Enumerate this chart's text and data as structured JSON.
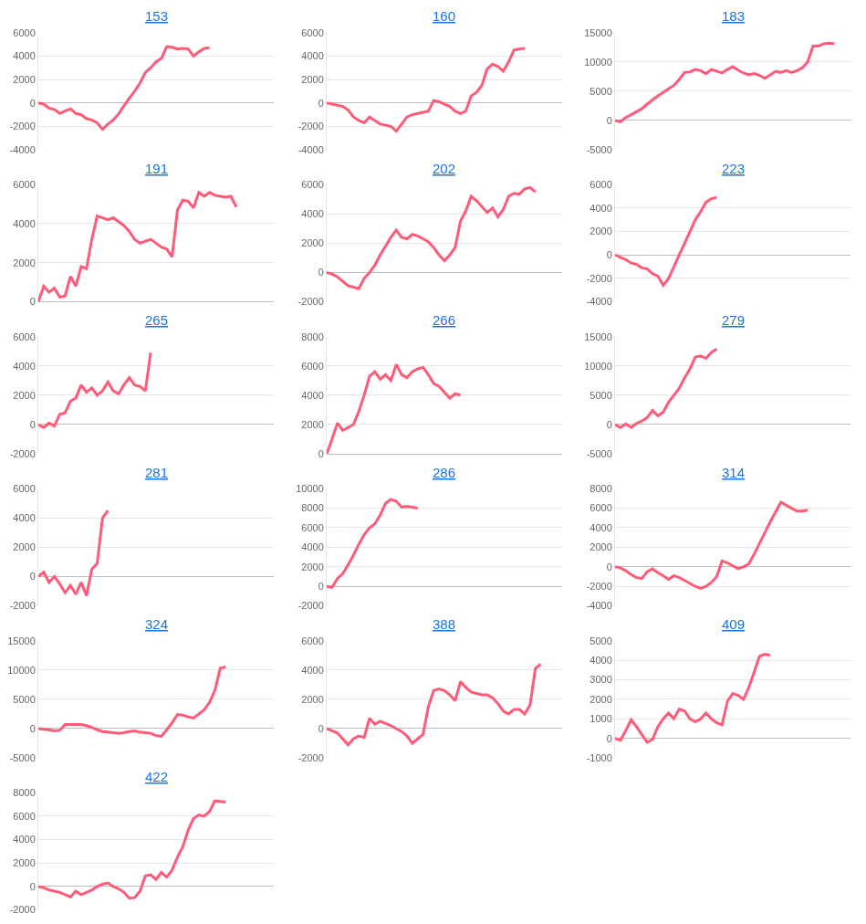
{
  "chart_data": [
    {
      "type": "line",
      "title": "153",
      "grid": "y",
      "color": "#ff5a78",
      "ylim": [
        -4000,
        6000
      ],
      "yticks": [
        -4000,
        -2000,
        0,
        2000,
        4000,
        6000
      ],
      "categories": [
        null,
        null,
        null,
        null,
        null,
        null,
        null,
        null,
        null,
        null,
        null,
        null,
        null,
        null,
        null,
        null,
        null,
        null,
        null,
        null,
        null,
        null,
        null,
        null,
        null,
        null,
        null,
        null,
        null,
        null,
        null,
        null,
        null,
        null,
        null,
        null,
        null,
        null,
        null,
        null,
        null,
        null,
        null,
        null,
        null
      ],
      "values": [
        0,
        -100,
        -450,
        -550,
        -900,
        -700,
        -500,
        -900,
        -1000,
        -1350,
        -1450,
        -1700,
        -2250,
        -1800,
        -1450,
        -950,
        -250,
        400,
        1000,
        1700,
        2600,
        3000,
        3500,
        3800,
        4800,
        4750,
        4600,
        4650,
        4600,
        4000,
        4350,
        4650,
        4700,
        null,
        null,
        null,
        null,
        null,
        null,
        null,
        null,
        null,
        null,
        null,
        null
      ]
    },
    {
      "type": "line",
      "title": "160",
      "grid": "y",
      "color": "#ff5a78",
      "ylim": [
        -4000,
        6000
      ],
      "yticks": [
        -4000,
        -2000,
        0,
        2000,
        4000,
        6000
      ],
      "categories": [
        null,
        null,
        null,
        null,
        null,
        null,
        null,
        null,
        null,
        null,
        null,
        null,
        null,
        null,
        null,
        null,
        null,
        null,
        null,
        null,
        null,
        null,
        null,
        null,
        null,
        null,
        null,
        null,
        null,
        null,
        null,
        null,
        null,
        null,
        null,
        null,
        null,
        null,
        null,
        null,
        null,
        null,
        null,
        null,
        null
      ],
      "values": [
        0,
        -100,
        -200,
        -300,
        -600,
        -1200,
        -1500,
        -1700,
        -1200,
        -1500,
        -1800,
        -1900,
        -2000,
        -2400,
        -1800,
        -1200,
        -1000,
        -900,
        -800,
        -700,
        200,
        100,
        -100,
        -300,
        -700,
        -900,
        -700,
        600,
        900,
        1500,
        2900,
        3300,
        3100,
        2700,
        3500,
        4500,
        4600,
        4650,
        null,
        null,
        null,
        null,
        null,
        null,
        null
      ]
    },
    {
      "type": "line",
      "title": "183",
      "grid": "y",
      "color": "#ff5a78",
      "ylim": [
        -5000,
        15000
      ],
      "yticks": [
        -5000,
        0,
        5000,
        10000,
        15000
      ],
      "categories": [
        null,
        null,
        null,
        null,
        null,
        null,
        null,
        null,
        null,
        null,
        null,
        null,
        null,
        null,
        null,
        null,
        null,
        null,
        null,
        null,
        null,
        null,
        null,
        null,
        null,
        null,
        null,
        null,
        null,
        null,
        null,
        null,
        null,
        null,
        null,
        null,
        null,
        null,
        null,
        null,
        null,
        null,
        null,
        null,
        null
      ],
      "values": [
        0,
        -200,
        500,
        1000,
        1500,
        2000,
        2800,
        3500,
        4200,
        4800,
        5400,
        6000,
        7000,
        8200,
        8300,
        8700,
        8500,
        8000,
        8700,
        8400,
        8100,
        8700,
        9200,
        8600,
        8100,
        7800,
        8000,
        7700,
        7200,
        7800,
        8400,
        8200,
        8500,
        8200,
        8500,
        9000,
        10000,
        12700,
        12700,
        13100,
        13200,
        13100,
        null,
        null,
        null
      ]
    },
    {
      "type": "line",
      "title": "191",
      "grid": "y",
      "color": "#ff5a78",
      "ylim": [
        0,
        6000
      ],
      "yticks": [
        0,
        2000,
        4000,
        6000
      ],
      "categories": [
        null,
        null,
        null,
        null,
        null,
        null,
        null,
        null,
        null,
        null,
        null,
        null,
        null,
        null,
        null,
        null,
        null,
        null,
        null,
        null,
        null,
        null,
        null,
        null,
        null,
        null,
        null,
        null,
        null,
        null,
        null,
        null,
        null,
        null,
        null,
        null,
        null,
        null,
        null,
        null,
        null,
        null,
        null,
        null,
        null
      ],
      "values": [
        0,
        800,
        500,
        700,
        250,
        300,
        1300,
        800,
        1800,
        1700,
        3200,
        4400,
        4300,
        4200,
        4300,
        4100,
        3900,
        3600,
        3200,
        3000,
        3100,
        3200,
        3000,
        2800,
        2700,
        2300,
        4700,
        5200,
        5150,
        4800,
        5600,
        5400,
        5600,
        5450,
        5400,
        5350,
        5400,
        4850,
        null,
        null,
        null,
        null,
        null,
        null,
        null
      ]
    },
    {
      "type": "line",
      "title": "202",
      "grid": "y",
      "color": "#ff5a78",
      "ylim": [
        -2000,
        6000
      ],
      "yticks": [
        -2000,
        0,
        2000,
        4000,
        6000
      ],
      "categories": [
        null,
        null,
        null,
        null,
        null,
        null,
        null,
        null,
        null,
        null,
        null,
        null,
        null,
        null,
        null,
        null,
        null,
        null,
        null,
        null,
        null,
        null,
        null,
        null,
        null,
        null,
        null,
        null,
        null,
        null,
        null,
        null,
        null,
        null,
        null,
        null,
        null,
        null,
        null,
        null,
        null,
        null,
        null,
        null,
        null
      ],
      "values": [
        0,
        -100,
        -300,
        -600,
        -900,
        -1000,
        -1100,
        -400,
        0,
        500,
        1200,
        1800,
        2400,
        2900,
        2400,
        2300,
        2600,
        2500,
        2300,
        2100,
        1700,
        1200,
        800,
        1200,
        1700,
        3500,
        4200,
        5200,
        4900,
        4500,
        4100,
        4400,
        3800,
        4300,
        5200,
        5400,
        5350,
        5700,
        5800,
        5500,
        null,
        null,
        null,
        null,
        null
      ]
    },
    {
      "type": "line",
      "title": "223",
      "grid": "y",
      "color": "#ff5a78",
      "ylim": [
        -4000,
        6000
      ],
      "yticks": [
        -4000,
        -2000,
        0,
        2000,
        4000,
        6000
      ],
      "categories": [
        null,
        null,
        null,
        null,
        null,
        null,
        null,
        null,
        null,
        null,
        null,
        null,
        null,
        null,
        null,
        null,
        null,
        null,
        null,
        null,
        null,
        null,
        null,
        null,
        null,
        null,
        null,
        null,
        null,
        null,
        null,
        null,
        null,
        null,
        null,
        null,
        null,
        null,
        null,
        null,
        null,
        null,
        null,
        null,
        null
      ],
      "values": [
        0,
        -200,
        -400,
        -700,
        -800,
        -1100,
        -1200,
        -1600,
        -1800,
        -2600,
        -2000,
        -1000,
        0,
        1000,
        2000,
        3000,
        3700,
        4500,
        4800,
        4900,
        null,
        null,
        null,
        null,
        null,
        null,
        null,
        null,
        null,
        null,
        null,
        null,
        null,
        null,
        null,
        null,
        null,
        null,
        null,
        null,
        null,
        null,
        null,
        null,
        null
      ]
    },
    {
      "type": "line",
      "title": "265",
      "grid": "y",
      "color": "#ff5a78",
      "ylim": [
        -2000,
        6000
      ],
      "yticks": [
        -2000,
        0,
        2000,
        4000,
        6000
      ],
      "categories": [
        null,
        null,
        null,
        null,
        null,
        null,
        null,
        null,
        null,
        null,
        null,
        null,
        null,
        null,
        null,
        null,
        null,
        null,
        null,
        null,
        null,
        null,
        null,
        null,
        null,
        null,
        null,
        null,
        null,
        null,
        null,
        null,
        null,
        null,
        null,
        null,
        null,
        null,
        null,
        null,
        null,
        null,
        null,
        null,
        null
      ],
      "values": [
        0,
        -200,
        100,
        -100,
        700,
        800,
        1600,
        1800,
        2700,
        2200,
        2500,
        2000,
        2300,
        2900,
        2300,
        2100,
        2700,
        3200,
        2700,
        2600,
        2300,
        4900,
        null,
        null,
        null,
        null,
        null,
        null,
        null,
        null,
        null,
        null,
        null,
        null,
        null,
        null,
        null,
        null,
        null,
        null,
        null,
        null,
        null,
        null,
        null
      ]
    },
    {
      "type": "line",
      "title": "266",
      "grid": "y",
      "color": "#ff5a78",
      "ylim": [
        0,
        8000
      ],
      "yticks": [
        0,
        2000,
        4000,
        6000,
        8000
      ],
      "categories": [
        null,
        null,
        null,
        null,
        null,
        null,
        null,
        null,
        null,
        null,
        null,
        null,
        null,
        null,
        null,
        null,
        null,
        null,
        null,
        null,
        null,
        null,
        null,
        null,
        null,
        null,
        null,
        null,
        null,
        null,
        null,
        null,
        null,
        null,
        null,
        null,
        null,
        null,
        null,
        null,
        null,
        null,
        null,
        null,
        null
      ],
      "values": [
        0,
        1000,
        2100,
        1600,
        1800,
        2000,
        2900,
        4000,
        5300,
        5600,
        5100,
        5400,
        5000,
        6100,
        5400,
        5200,
        5600,
        5800,
        5900,
        5400,
        4800,
        4600,
        4200,
        3800,
        4100,
        4000,
        null,
        null,
        null,
        null,
        null,
        null,
        null,
        null,
        null,
        null,
        null,
        null,
        null,
        null,
        null,
        null,
        null,
        null,
        null
      ]
    },
    {
      "type": "line",
      "title": "279",
      "grid": "y",
      "color": "#ff5a78",
      "ylim": [
        -5000,
        15000
      ],
      "yticks": [
        -5000,
        0,
        5000,
        10000,
        15000
      ],
      "categories": [
        null,
        null,
        null,
        null,
        null,
        null,
        null,
        null,
        null,
        null,
        null,
        null,
        null,
        null,
        null,
        null,
        null,
        null,
        null,
        null,
        null,
        null,
        null,
        null,
        null,
        null,
        null,
        null,
        null,
        null,
        null,
        null,
        null,
        null,
        null,
        null,
        null,
        null,
        null,
        null,
        null,
        null,
        null,
        null,
        null
      ],
      "values": [
        0,
        -500,
        100,
        -500,
        200,
        600,
        1200,
        2400,
        1500,
        2100,
        3800,
        5000,
        6200,
        8000,
        9500,
        11500,
        11700,
        11300,
        12300,
        12900,
        null,
        null,
        null,
        null,
        null,
        null,
        null,
        null,
        null,
        null,
        null,
        null,
        null,
        null,
        null,
        null,
        null,
        null,
        null,
        null,
        null,
        null,
        null,
        null,
        null
      ]
    },
    {
      "type": "line",
      "title": "281",
      "grid": "y",
      "color": "#ff5a78",
      "ylim": [
        -2000,
        6000
      ],
      "yticks": [
        -2000,
        0,
        2000,
        4000,
        6000
      ],
      "categories": [
        null,
        null,
        null,
        null,
        null,
        null,
        null,
        null,
        null,
        null,
        null,
        null,
        null,
        null,
        null,
        null,
        null,
        null,
        null,
        null,
        null,
        null,
        null,
        null,
        null,
        null,
        null,
        null,
        null,
        null,
        null,
        null,
        null,
        null,
        null,
        null,
        null,
        null,
        null,
        null,
        null,
        null,
        null,
        null,
        null
      ],
      "values": [
        0,
        300,
        -400,
        0,
        -500,
        -1100,
        -600,
        -1200,
        -400,
        -1300,
        500,
        900,
        4000,
        4500,
        null,
        null,
        null,
        null,
        null,
        null,
        null,
        null,
        null,
        null,
        null,
        null,
        null,
        null,
        null,
        null,
        null,
        null,
        null,
        null,
        null,
        null,
        null,
        null,
        null,
        null,
        null,
        null,
        null,
        null,
        null
      ]
    },
    {
      "type": "line",
      "title": "286",
      "grid": "y",
      "color": "#ff5a78",
      "ylim": [
        -2000,
        10000
      ],
      "yticks": [
        -2000,
        0,
        2000,
        4000,
        6000,
        8000,
        10000
      ],
      "categories": [
        null,
        null,
        null,
        null,
        null,
        null,
        null,
        null,
        null,
        null,
        null,
        null,
        null,
        null,
        null,
        null,
        null,
        null,
        null,
        null,
        null,
        null,
        null,
        null,
        null,
        null,
        null,
        null,
        null,
        null,
        null,
        null,
        null,
        null,
        null,
        null,
        null,
        null,
        null,
        null,
        null,
        null,
        null,
        null,
        null
      ],
      "values": [
        0,
        -100,
        800,
        1300,
        2200,
        3200,
        4300,
        5300,
        6000,
        6400,
        7300,
        8500,
        8900,
        8700,
        8100,
        8200,
        8100,
        8000,
        null,
        null,
        null,
        null,
        null,
        null,
        null,
        null,
        null,
        null,
        null,
        null,
        null,
        null,
        null,
        null,
        null,
        null,
        null,
        null,
        null,
        null,
        null,
        null,
        null,
        null,
        null
      ]
    },
    {
      "type": "line",
      "title": "314",
      "grid": "y",
      "color": "#ff5a78",
      "ylim": [
        -4000,
        8000
      ],
      "yticks": [
        -4000,
        -2000,
        0,
        2000,
        4000,
        6000,
        8000
      ],
      "categories": [
        null,
        null,
        null,
        null,
        null,
        null,
        null,
        null,
        null,
        null,
        null,
        null,
        null,
        null,
        null,
        null,
        null,
        null,
        null,
        null,
        null,
        null,
        null,
        null,
        null,
        null,
        null,
        null,
        null,
        null,
        null,
        null,
        null,
        null,
        null,
        null,
        null,
        null,
        null,
        null,
        null,
        null,
        null,
        null,
        null
      ],
      "values": [
        0,
        -100,
        -400,
        -800,
        -1100,
        -1200,
        -500,
        -200,
        -600,
        -900,
        -1300,
        -900,
        -1100,
        -1400,
        -1700,
        -2000,
        -2200,
        -2000,
        -1600,
        -1000,
        600,
        400,
        100,
        -200,
        0,
        300,
        1300,
        2400,
        3500,
        4600,
        5600,
        6600,
        6300,
        6000,
        5700,
        5700,
        5800,
        null,
        null,
        null,
        null,
        null,
        null,
        null,
        null
      ]
    },
    {
      "type": "line",
      "title": "324",
      "grid": "y",
      "color": "#ff5a78",
      "ylim": [
        -5000,
        15000
      ],
      "yticks": [
        -5000,
        0,
        5000,
        10000,
        15000
      ],
      "categories": [
        null,
        null,
        null,
        null,
        null,
        null,
        null,
        null,
        null,
        null,
        null,
        null,
        null,
        null,
        null,
        null,
        null,
        null,
        null,
        null,
        null,
        null,
        null,
        null,
        null,
        null,
        null,
        null,
        null,
        null,
        null,
        null,
        null,
        null,
        null,
        null,
        null,
        null,
        null,
        null,
        null,
        null,
        null,
        null,
        null
      ],
      "values": [
        0,
        -100,
        -200,
        -400,
        -300,
        700,
        700,
        700,
        700,
        500,
        200,
        -200,
        -500,
        -600,
        -700,
        -800,
        -700,
        -500,
        -400,
        -600,
        -700,
        -800,
        -1200,
        -1300,
        -200,
        1000,
        2400,
        2300,
        2000,
        1800,
        2500,
        3200,
        4500,
        6500,
        10300,
        10500,
        null,
        null,
        null,
        null,
        null,
        null,
        null,
        null,
        null
      ]
    },
    {
      "type": "line",
      "title": "388",
      "grid": "y",
      "color": "#ff5a78",
      "ylim": [
        -2000,
        6000
      ],
      "yticks": [
        -2000,
        0,
        2000,
        4000,
        6000
      ],
      "categories": [
        null,
        null,
        null,
        null,
        null,
        null,
        null,
        null,
        null,
        null,
        null,
        null,
        null,
        null,
        null,
        null,
        null,
        null,
        null,
        null,
        null,
        null,
        null,
        null,
        null,
        null,
        null,
        null,
        null,
        null,
        null,
        null,
        null,
        null,
        null,
        null,
        null,
        null,
        null,
        null,
        null,
        null,
        null,
        null,
        null
      ],
      "values": [
        0,
        -150,
        -300,
        -700,
        -1100,
        -700,
        -500,
        -600,
        700,
        300,
        500,
        350,
        200,
        0,
        -200,
        -500,
        -1000,
        -700,
        -400,
        1500,
        2600,
        2700,
        2600,
        2300,
        1900,
        3200,
        2800,
        2500,
        2400,
        2300,
        2300,
        2100,
        1700,
        1200,
        1000,
        1300,
        1300,
        1000,
        1600,
        4100,
        4400,
        null,
        null,
        null,
        null
      ]
    },
    {
      "type": "line",
      "title": "409",
      "grid": "y",
      "color": "#ff5a78",
      "ylim": [
        -1000,
        5000
      ],
      "yticks": [
        -1000,
        0,
        1000,
        2000,
        3000,
        4000,
        5000
      ],
      "categories": [
        null,
        null,
        null,
        null,
        null,
        null,
        null,
        null,
        null,
        null,
        null,
        null,
        null,
        null,
        null,
        null,
        null,
        null,
        null,
        null,
        null,
        null,
        null,
        null,
        null,
        null,
        null,
        null,
        null,
        null,
        null,
        null,
        null,
        null,
        null,
        null,
        null,
        null,
        null,
        null,
        null,
        null,
        null,
        null,
        null
      ],
      "values": [
        0,
        -100,
        400,
        950,
        600,
        200,
        -200,
        -50,
        600,
        1000,
        1300,
        1000,
        1500,
        1400,
        1000,
        850,
        1000,
        1300,
        1000,
        800,
        700,
        1900,
        2300,
        2200,
        2000,
        2600,
        3400,
        4200,
        4300,
        4250,
        null,
        null,
        null,
        null,
        null,
        null,
        null,
        null,
        null,
        null,
        null,
        null,
        null,
        null,
        null
      ]
    },
    {
      "type": "line",
      "title": "422",
      "grid": "y",
      "color": "#ff5a78",
      "ylim": [
        -2000,
        8000
      ],
      "yticks": [
        -2000,
        0,
        2000,
        4000,
        6000,
        8000
      ],
      "categories": [
        null,
        null,
        null,
        null,
        null,
        null,
        null,
        null,
        null,
        null,
        null,
        null,
        null,
        null,
        null,
        null,
        null,
        null,
        null,
        null,
        null,
        null,
        null,
        null,
        null,
        null,
        null,
        null,
        null,
        null,
        null,
        null,
        null,
        null,
        null,
        null,
        null,
        null,
        null,
        null,
        null,
        null,
        null,
        null,
        null
      ],
      "values": [
        0,
        -100,
        -300,
        -400,
        -500,
        -700,
        -900,
        -400,
        -700,
        -500,
        -300,
        0,
        200,
        300,
        0,
        -200,
        -500,
        -1000,
        -950,
        -400,
        900,
        1000,
        600,
        1200,
        800,
        1400,
        2500,
        3400,
        4800,
        5800,
        6100,
        6000,
        6400,
        7300,
        7250,
        7200,
        null,
        null,
        null,
        null,
        null,
        null,
        null,
        null,
        null
      ]
    }
  ]
}
